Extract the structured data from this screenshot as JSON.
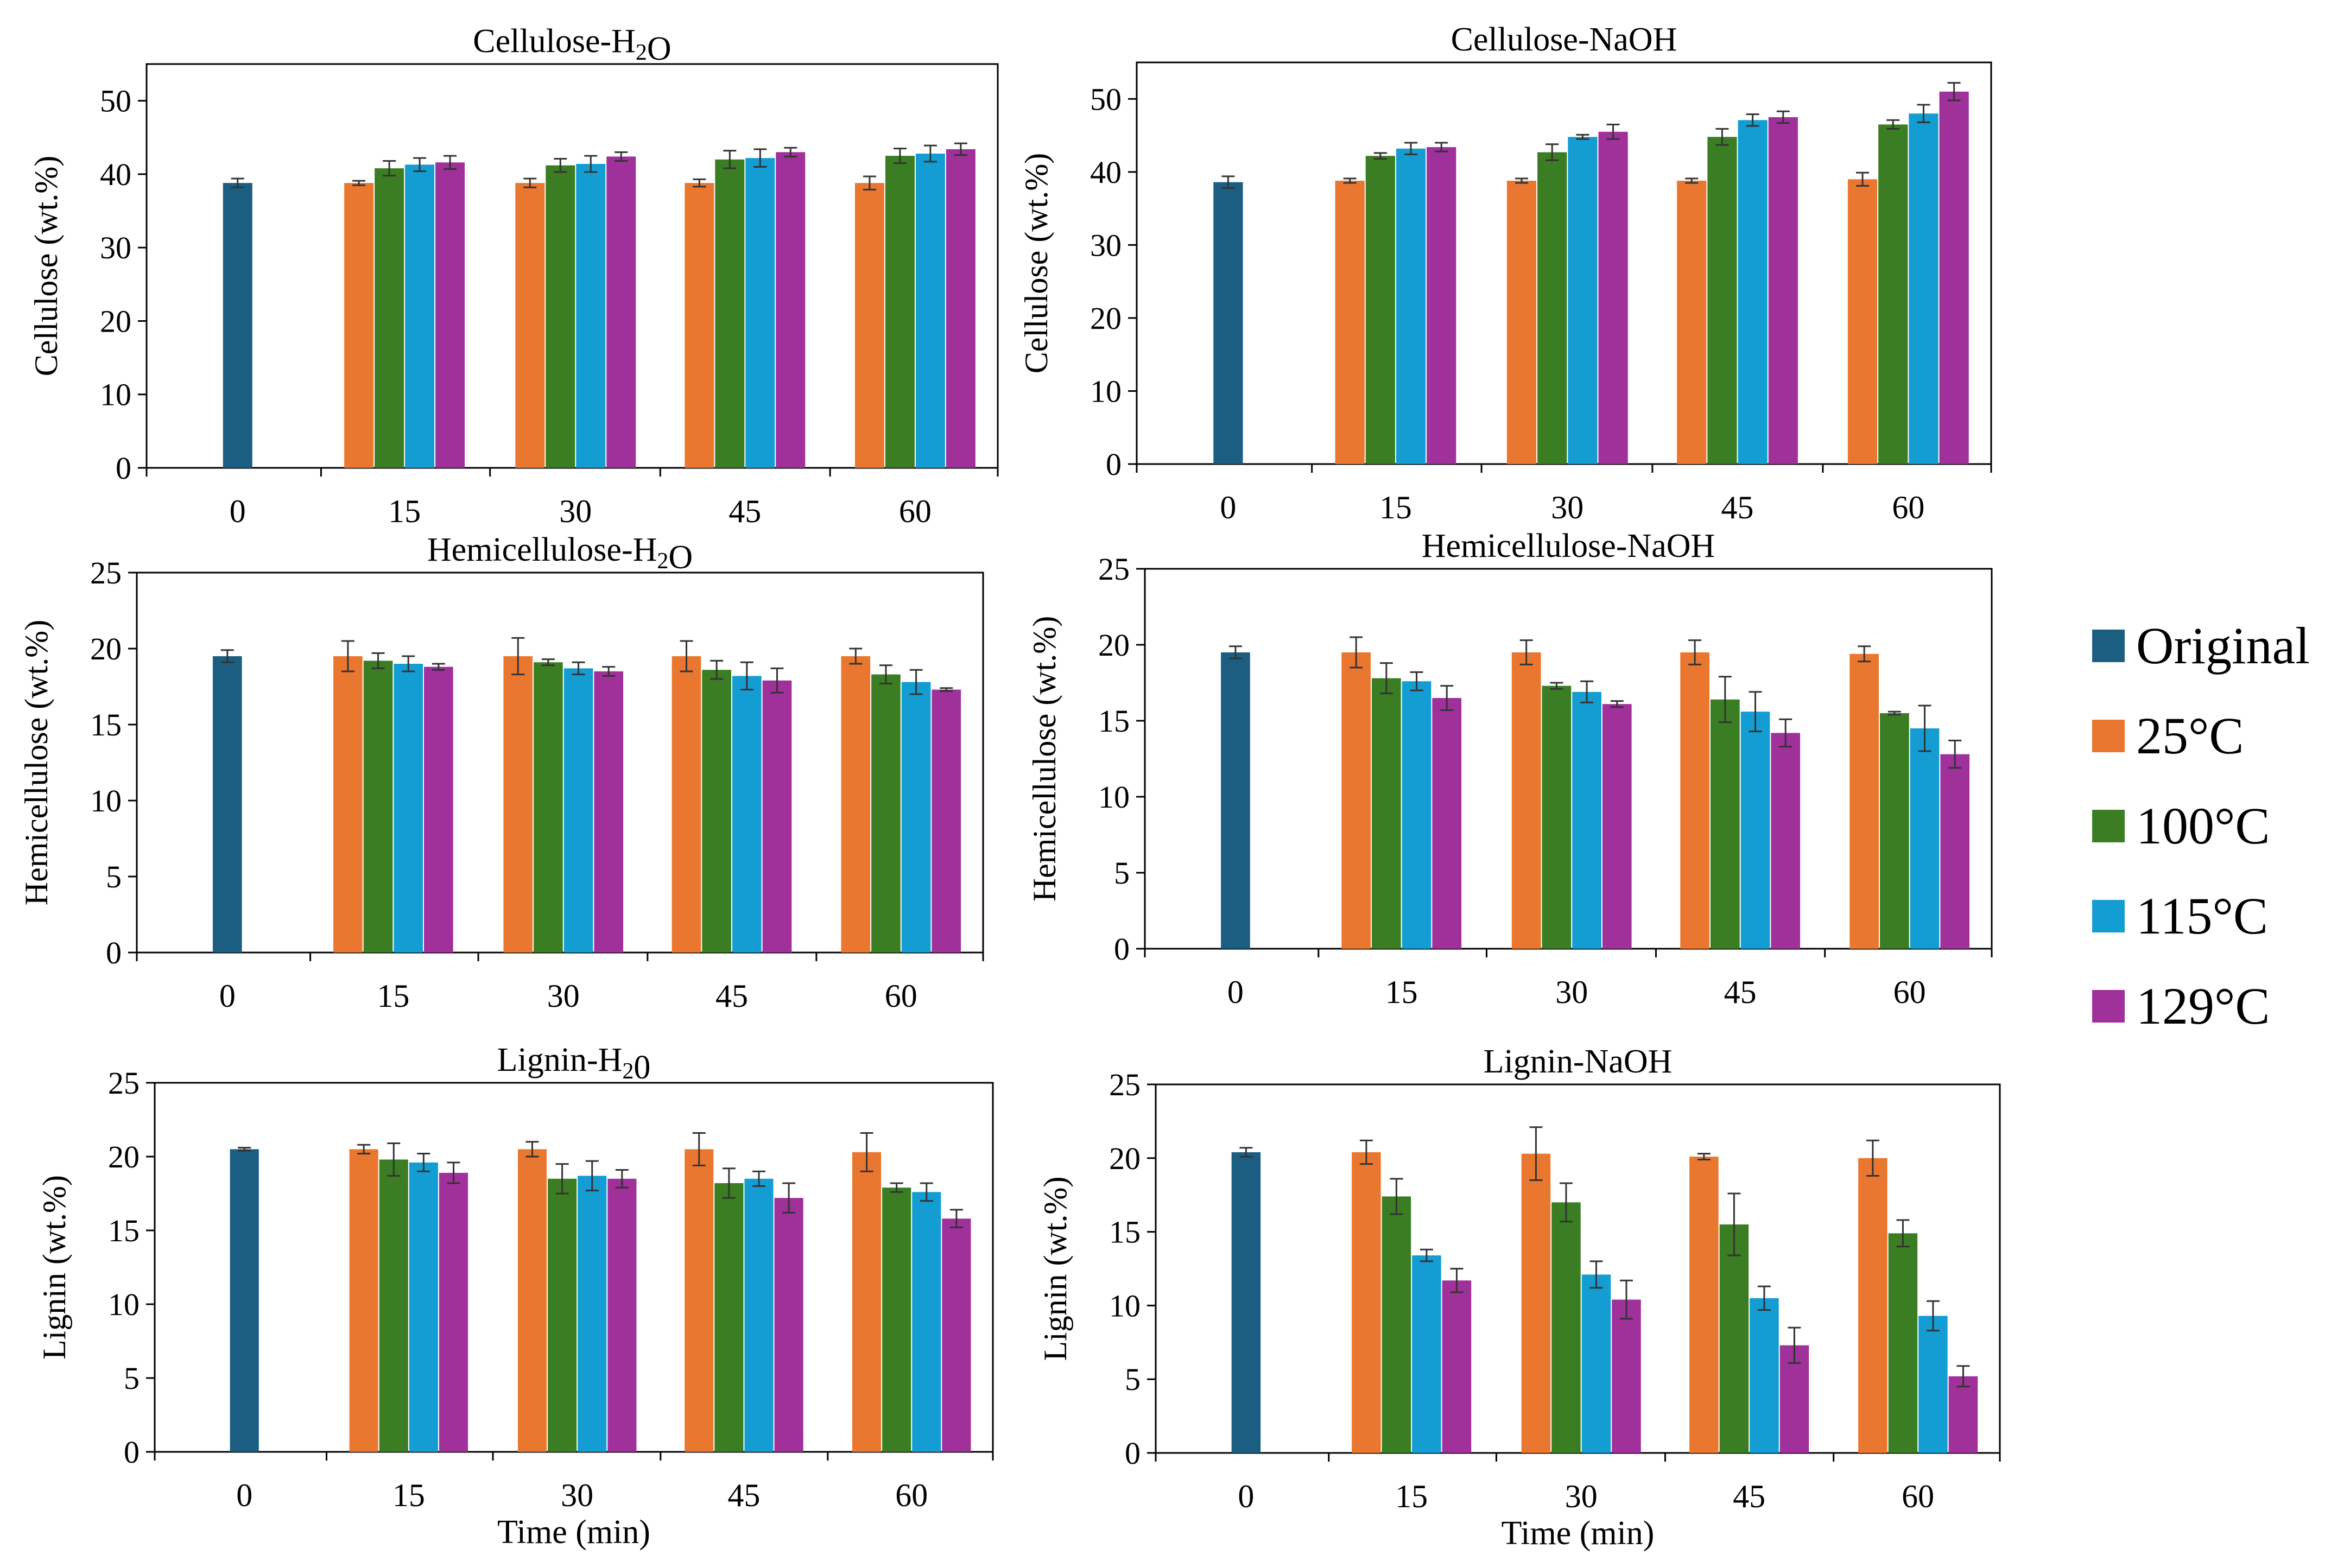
{
  "legend": {
    "title": "",
    "items": [
      {
        "label": "Original",
        "color": "#1B5E82"
      },
      {
        "label": "25°C",
        "color": "#E9772F"
      },
      {
        "label": "100°C",
        "color": "#3A7D22"
      },
      {
        "label": "115°C",
        "color": "#139DD3"
      },
      {
        "label": "129°C",
        "color": "#A0309A"
      }
    ]
  },
  "chart_data": [
    {
      "id": "cellulose-h2o",
      "type": "bar",
      "title": "Cellulose-H₂O",
      "xlabel": "",
      "ylabel": "Cellulose (wt.%)",
      "categories": [
        "0",
        "15",
        "30",
        "45",
        "60"
      ],
      "ylim": [
        0,
        55
      ],
      "yticks": [
        0,
        10,
        20,
        30,
        40,
        50
      ],
      "series": [
        {
          "name": "Original",
          "values": [
            38.8,
            null,
            null,
            null,
            null
          ],
          "errors": [
            0.6,
            null,
            null,
            null,
            null
          ]
        },
        {
          "name": "25°C",
          "values": [
            null,
            38.8,
            38.8,
            38.8,
            38.8
          ],
          "errors": [
            null,
            0.3,
            0.6,
            0.5,
            0.9
          ]
        },
        {
          "name": "100°C",
          "values": [
            null,
            40.8,
            41.2,
            42.0,
            42.5
          ],
          "errors": [
            null,
            1.0,
            0.9,
            1.2,
            1.0
          ]
        },
        {
          "name": "115°C",
          "values": [
            null,
            41.3,
            41.4,
            42.2,
            42.8
          ],
          "errors": [
            null,
            0.9,
            1.1,
            1.2,
            1.1
          ]
        },
        {
          "name": "129°C",
          "values": [
            null,
            41.6,
            42.4,
            43.0,
            43.4
          ],
          "errors": [
            null,
            0.9,
            0.6,
            0.6,
            0.8
          ]
        }
      ]
    },
    {
      "id": "cellulose-naoh",
      "type": "bar",
      "title": "Cellulose-NaOH",
      "xlabel": "",
      "ylabel": "Cellulose (wt.%)",
      "categories": [
        "0",
        "15",
        "30",
        "45",
        "60"
      ],
      "ylim": [
        0,
        55
      ],
      "yticks": [
        0,
        10,
        20,
        30,
        40,
        50
      ],
      "series": [
        {
          "name": "Original",
          "values": [
            38.6,
            null,
            null,
            null,
            null
          ],
          "errors": [
            0.8,
            null,
            null,
            null,
            null
          ]
        },
        {
          "name": "25°C",
          "values": [
            null,
            38.8,
            38.8,
            38.8,
            39.0
          ],
          "errors": [
            null,
            0.3,
            0.3,
            0.3,
            0.9
          ]
        },
        {
          "name": "100°C",
          "values": [
            null,
            42.2,
            42.7,
            44.8,
            46.5
          ],
          "errors": [
            null,
            0.4,
            1.1,
            1.1,
            0.6
          ]
        },
        {
          "name": "115°C",
          "values": [
            null,
            43.2,
            44.8,
            47.1,
            48.0
          ],
          "errors": [
            null,
            0.8,
            0.3,
            0.8,
            1.2
          ]
        },
        {
          "name": "129°C",
          "values": [
            null,
            43.4,
            45.5,
            47.5,
            51.0
          ],
          "errors": [
            null,
            0.6,
            1.0,
            0.8,
            1.2
          ]
        }
      ]
    },
    {
      "id": "hemicellulose-h2o",
      "type": "bar",
      "title": "Hemicellulose-H₂O",
      "xlabel": "",
      "ylabel": "Hemicellulose (wt.%)",
      "categories": [
        "0",
        "15",
        "30",
        "45",
        "60"
      ],
      "ylim": [
        0,
        25
      ],
      "yticks": [
        0,
        5,
        10,
        15,
        20,
        25
      ],
      "series": [
        {
          "name": "Original",
          "values": [
            19.5,
            null,
            null,
            null,
            null
          ],
          "errors": [
            0.4,
            null,
            null,
            null,
            null
          ]
        },
        {
          "name": "25°C",
          "values": [
            null,
            19.5,
            19.5,
            19.5,
            19.5
          ],
          "errors": [
            null,
            1.0,
            1.2,
            1.0,
            0.5
          ]
        },
        {
          "name": "100°C",
          "values": [
            null,
            19.2,
            19.1,
            18.6,
            18.3
          ],
          "errors": [
            null,
            0.5,
            0.2,
            0.6,
            0.6
          ]
        },
        {
          "name": "115°C",
          "values": [
            null,
            19.0,
            18.7,
            18.2,
            17.8
          ],
          "errors": [
            null,
            0.5,
            0.4,
            0.9,
            0.8
          ]
        },
        {
          "name": "129°C",
          "values": [
            null,
            18.8,
            18.5,
            17.9,
            17.3
          ],
          "errors": [
            null,
            0.2,
            0.3,
            0.8,
            0.1
          ]
        }
      ]
    },
    {
      "id": "hemicellulose-naoh",
      "type": "bar",
      "title": "Hemicellulose-NaOH",
      "xlabel": "",
      "ylabel": "Hemicellulose (wt.%)",
      "categories": [
        "0",
        "15",
        "30",
        "45",
        "60"
      ],
      "ylim": [
        0,
        25
      ],
      "yticks": [
        0,
        5,
        10,
        15,
        20,
        25
      ],
      "series": [
        {
          "name": "Original",
          "values": [
            19.5,
            null,
            null,
            null,
            null
          ],
          "errors": [
            0.4,
            null,
            null,
            null,
            null
          ]
        },
        {
          "name": "25°C",
          "values": [
            null,
            19.5,
            19.5,
            19.5,
            19.4
          ],
          "errors": [
            null,
            1.0,
            0.8,
            0.8,
            0.5
          ]
        },
        {
          "name": "100°C",
          "values": [
            null,
            17.8,
            17.3,
            16.4,
            15.5
          ],
          "errors": [
            null,
            1.0,
            0.2,
            1.5,
            0.1
          ]
        },
        {
          "name": "115°C",
          "values": [
            null,
            17.6,
            16.9,
            15.6,
            14.5
          ],
          "errors": [
            null,
            0.6,
            0.7,
            1.3,
            1.5
          ]
        },
        {
          "name": "129°C",
          "values": [
            null,
            16.5,
            16.1,
            14.2,
            12.8
          ],
          "errors": [
            null,
            0.8,
            0.2,
            0.9,
            0.9
          ]
        }
      ]
    },
    {
      "id": "lignin-h2o",
      "type": "bar",
      "title": "Lignin-H₂0",
      "xlabel": "Time (min)",
      "ylabel": "Lignin (wt.%)",
      "categories": [
        "0",
        "15",
        "30",
        "45",
        "60"
      ],
      "ylim": [
        0,
        25
      ],
      "yticks": [
        0,
        5,
        10,
        15,
        20,
        25
      ],
      "series": [
        {
          "name": "Original",
          "values": [
            20.5,
            null,
            null,
            null,
            null
          ],
          "errors": [
            0.1,
            null,
            null,
            null,
            null
          ]
        },
        {
          "name": "25°C",
          "values": [
            null,
            20.5,
            20.5,
            20.5,
            20.3
          ],
          "errors": [
            null,
            0.3,
            0.5,
            1.1,
            1.3
          ]
        },
        {
          "name": "100°C",
          "values": [
            null,
            19.8,
            18.5,
            18.2,
            17.9
          ],
          "errors": [
            null,
            1.1,
            1.0,
            1.0,
            0.3
          ]
        },
        {
          "name": "115°C",
          "values": [
            null,
            19.6,
            18.7,
            18.5,
            17.6
          ],
          "errors": [
            null,
            0.6,
            1.0,
            0.5,
            0.6
          ]
        },
        {
          "name": "129°C",
          "values": [
            null,
            18.9,
            18.5,
            17.2,
            15.8
          ],
          "errors": [
            null,
            0.7,
            0.6,
            1.0,
            0.6
          ]
        }
      ]
    },
    {
      "id": "lignin-naoh",
      "type": "bar",
      "title": "Lignin-NaOH",
      "xlabel": "Time (min)",
      "ylabel": "Lignin (wt.%)",
      "categories": [
        "0",
        "15",
        "30",
        "45",
        "60"
      ],
      "ylim": [
        0,
        25
      ],
      "yticks": [
        0,
        5,
        10,
        15,
        20,
        25
      ],
      "series": [
        {
          "name": "Original",
          "values": [
            20.4,
            null,
            null,
            null,
            null
          ],
          "errors": [
            0.3,
            null,
            null,
            null,
            null
          ]
        },
        {
          "name": "25°C",
          "values": [
            null,
            20.4,
            20.3,
            20.1,
            20.0
          ],
          "errors": [
            null,
            0.8,
            1.8,
            0.2,
            1.2
          ]
        },
        {
          "name": "100°C",
          "values": [
            null,
            17.4,
            17.0,
            15.5,
            14.9
          ],
          "errors": [
            null,
            1.2,
            1.3,
            2.1,
            0.9
          ]
        },
        {
          "name": "115°C",
          "values": [
            null,
            13.4,
            12.1,
            10.5,
            9.3
          ],
          "errors": [
            null,
            0.4,
            0.9,
            0.8,
            1.0
          ]
        },
        {
          "name": "129°C",
          "values": [
            null,
            11.7,
            10.4,
            7.3,
            5.2
          ],
          "errors": [
            null,
            0.8,
            1.3,
            1.2,
            0.7
          ]
        }
      ]
    }
  ]
}
